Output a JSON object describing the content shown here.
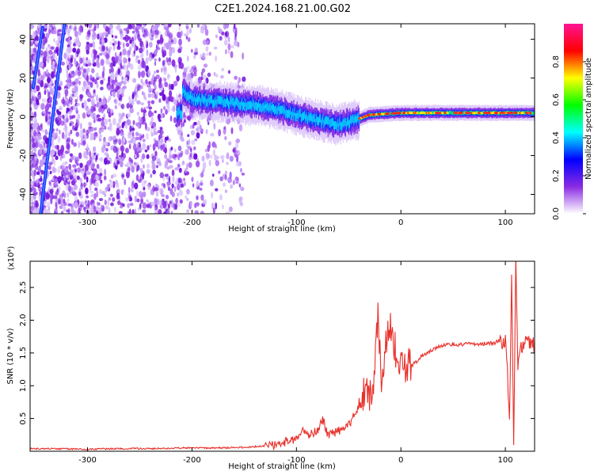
{
  "title": "C2E1.2024.168.21.00.G02",
  "colors": {
    "snr_line": "#e8302a",
    "axis": "#000000"
  },
  "chart_data": [
    {
      "id": "spectrogram",
      "type": "heatmap",
      "xlabel": "Height of straight line (km)",
      "ylabel": "Frequency (Hz)",
      "xlim": [
        -355,
        128
      ],
      "ylim": [
        -50,
        48
      ],
      "xticks": [
        -300,
        -200,
        -100,
        0,
        100
      ],
      "yticks": [
        -40,
        -20,
        0,
        20,
        40
      ],
      "colorbar": {
        "label": "Normalized spectral amplitude",
        "range": [
          0,
          1
        ],
        "ticks": [
          "0.0",
          "0.2",
          "0.4",
          "0.6",
          "0.8"
        ],
        "colormap": [
          "#ffffff",
          "#8a2be2",
          "#0000ff",
          "#00ffff",
          "#00ff00",
          "#ffff00",
          "#ff0000",
          "#ff1493"
        ]
      },
      "trace_centerline": [
        {
          "x": -210,
          "y": 14
        },
        {
          "x": -200,
          "y": 9
        },
        {
          "x": -180,
          "y": 8
        },
        {
          "x": -160,
          "y": 7
        },
        {
          "x": -140,
          "y": 6
        },
        {
          "x": -120,
          "y": 4
        },
        {
          "x": -100,
          "y": 1
        },
        {
          "x": -80,
          "y": -2
        },
        {
          "x": -60,
          "y": -4
        },
        {
          "x": -45,
          "y": -2
        },
        {
          "x": -30,
          "y": 1
        },
        {
          "x": 0,
          "y": 2
        },
        {
          "x": 50,
          "y": 2
        },
        {
          "x": 100,
          "y": 2
        },
        {
          "x": 128,
          "y": 2
        }
      ],
      "diagonal_lines": [
        {
          "x0": -352,
          "y0": 15,
          "x1": -343,
          "y1": 46
        },
        {
          "x0": -345,
          "y0": -50,
          "x1": -322,
          "y1": 48
        }
      ]
    },
    {
      "id": "snr",
      "type": "line",
      "xlabel": "Height of straight line (km)",
      "ylabel": "SNR (10 * v/v)",
      "multiplier": "(x10⁴)",
      "xlim": [
        -355,
        128
      ],
      "ylim": [
        0,
        2.9
      ],
      "xticks": [
        -300,
        -200,
        -100,
        0,
        100
      ],
      "yticks": [
        "0.5",
        "1.0",
        "1.5",
        "2.0",
        "2.5"
      ],
      "series": [
        {
          "points": [
            [
              -355,
              0.04
            ],
            [
              -330,
              0.04
            ],
            [
              -300,
              0.03
            ],
            [
              -270,
              0.04
            ],
            [
              -240,
              0.04
            ],
            [
              -210,
              0.05
            ],
            [
              -180,
              0.05
            ],
            [
              -150,
              0.06
            ],
            [
              -130,
              0.08
            ],
            [
              -120,
              0.1
            ],
            [
              -110,
              0.15
            ],
            [
              -100,
              0.2
            ],
            [
              -95,
              0.35
            ],
            [
              -90,
              0.25
            ],
            [
              -80,
              0.3
            ],
            [
              -75,
              0.5
            ],
            [
              -70,
              0.25
            ],
            [
              -60,
              0.3
            ],
            [
              -50,
              0.4
            ],
            [
              -40,
              0.7
            ],
            [
              -35,
              0.9
            ],
            [
              -30,
              0.8
            ],
            [
              -25,
              1.2
            ],
            [
              -22,
              2.18
            ],
            [
              -18,
              0.8
            ],
            [
              -15,
              1.7
            ],
            [
              -10,
              1.9
            ],
            [
              -5,
              1.5
            ],
            [
              0,
              1.3
            ],
            [
              10,
              1.3
            ],
            [
              20,
              1.45
            ],
            [
              30,
              1.55
            ],
            [
              40,
              1.62
            ],
            [
              50,
              1.63
            ],
            [
              60,
              1.63
            ],
            [
              70,
              1.64
            ],
            [
              80,
              1.64
            ],
            [
              90,
              1.65
            ],
            [
              95,
              1.7
            ],
            [
              100,
              1.65
            ],
            [
              102,
              1.2
            ],
            [
              104,
              0.5
            ],
            [
              106,
              2.8
            ],
            [
              108,
              0.1
            ],
            [
              110,
              2.88
            ],
            [
              112,
              1.2
            ],
            [
              115,
              1.6
            ],
            [
              120,
              1.65
            ],
            [
              128,
              1.6
            ]
          ]
        }
      ]
    }
  ]
}
